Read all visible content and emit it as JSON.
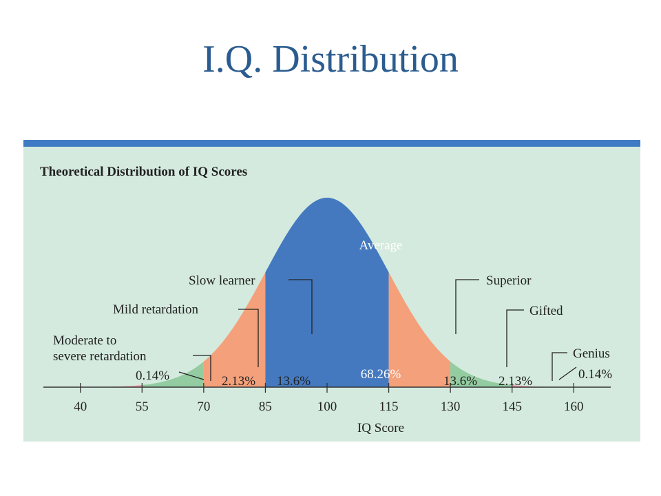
{
  "slide": {
    "title": "I.Q. Distribution"
  },
  "colors": {
    "title": "#2b5c8f",
    "figure_bg": "#d4eade",
    "top_bar": "#3f7bc4",
    "center_band": "#4479c0",
    "sd1_band": "#f4a07a",
    "sd2_band": "#93cca0",
    "tail_band": "#ef9aa2"
  },
  "chart_data": {
    "type": "area",
    "title": "Theoretical Distribution of IQ Scores",
    "xlabel": "IQ Score",
    "ylabel": "",
    "distribution": {
      "mean": 100,
      "sd": 15
    },
    "xlim": [
      30,
      170
    ],
    "x_ticks": [
      40,
      55,
      70,
      85,
      100,
      115,
      130,
      145,
      160
    ],
    "grid": false,
    "bands": [
      {
        "from": 40,
        "to": 55,
        "percent": "0.14%",
        "color": "#ef9aa2"
      },
      {
        "from": 55,
        "to": 70,
        "percent": "2.13%",
        "color": "#93cca0"
      },
      {
        "from": 70,
        "to": 85,
        "percent": "13.6%",
        "color": "#f4a07a"
      },
      {
        "from": 85,
        "to": 115,
        "percent": "68.26%",
        "color": "#4479c0"
      },
      {
        "from": 115,
        "to": 130,
        "percent": "13.6%",
        "color": "#f4a07a"
      },
      {
        "from": 130,
        "to": 145,
        "percent": "2.13%",
        "color": "#93cca0"
      },
      {
        "from": 145,
        "to": 160,
        "percent": "0.14%",
        "color": "#ef9aa2"
      }
    ],
    "categories": [
      {
        "label": "Moderate to",
        "label2": "severe retardation",
        "side": "left"
      },
      {
        "label": "Mild retardation",
        "side": "left"
      },
      {
        "label": "Slow learner",
        "side": "left"
      },
      {
        "label": "Average",
        "side": "center"
      },
      {
        "label": "Superior",
        "side": "right"
      },
      {
        "label": "Gifted",
        "side": "right"
      },
      {
        "label": "Genius",
        "side": "right"
      }
    ]
  }
}
